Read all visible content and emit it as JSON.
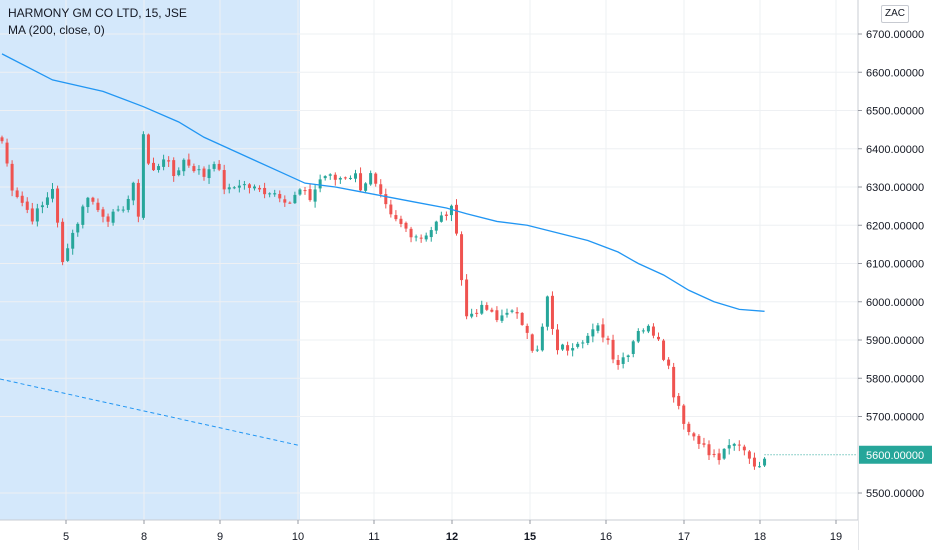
{
  "chart_data": {
    "type": "candlestick",
    "symbol_line": "HARMONY GM CO LTD, 15, JSE",
    "indicator_line": "MA (200, close, 0)",
    "currency": "ZAC",
    "last_price_label": "5600.00000",
    "last_price": 5600,
    "ylim": [
      5440,
      6760
    ],
    "y_ticks": [
      {
        "value": 6700,
        "label": "6700.00000"
      },
      {
        "value": 6600,
        "label": "6600.00000"
      },
      {
        "value": 6500,
        "label": "6500.00000"
      },
      {
        "value": 6400,
        "label": "6400.00000"
      },
      {
        "value": 6300,
        "label": "6300.00000"
      },
      {
        "value": 6200,
        "label": "6200.00000"
      },
      {
        "value": 6100,
        "label": "6100.00000"
      },
      {
        "value": 6000,
        "label": "6000.00000"
      },
      {
        "value": 5900,
        "label": "5900.00000"
      },
      {
        "value": 5800,
        "label": "5800.00000"
      },
      {
        "value": 5700,
        "label": "5700.00000"
      },
      {
        "value": 5500,
        "label": "5500.00000"
      }
    ],
    "x_ticks": [
      "5",
      "8",
      "9",
      "10",
      "11",
      "12",
      "15",
      "16",
      "17",
      "18",
      "19"
    ],
    "bold_x_ticks": [
      "12",
      "15"
    ],
    "price_path": [
      [
        0,
        6420
      ],
      [
        2,
        6300
      ],
      [
        4,
        6260
      ],
      [
        6,
        6220
      ],
      [
        8,
        6250
      ],
      [
        10,
        6300
      ],
      [
        11,
        6200
      ],
      [
        12,
        6100
      ],
      [
        13,
        6150
      ],
      [
        15,
        6210
      ],
      [
        17,
        6280
      ],
      [
        19,
        6240
      ],
      [
        21,
        6220
      ],
      [
        23,
        6230
      ],
      [
        25,
        6270
      ],
      [
        26,
        6300
      ],
      [
        27,
        6230
      ],
      [
        28,
        6440
      ],
      [
        29,
        6360
      ],
      [
        30,
        6340
      ],
      [
        32,
        6380
      ],
      [
        34,
        6330
      ],
      [
        36,
        6370
      ],
      [
        38,
        6350
      ],
      [
        40,
        6330
      ],
      [
        42,
        6370
      ],
      [
        44,
        6300
      ],
      [
        45,
        6290
      ],
      [
        47,
        6310
      ],
      [
        49,
        6300
      ],
      [
        51,
        6290
      ],
      [
        53,
        6290
      ],
      [
        55,
        6280
      ],
      [
        57,
        6260
      ],
      [
        59,
        6290
      ],
      [
        61,
        6270
      ],
      [
        63,
        6320
      ],
      [
        64,
        6330
      ],
      [
        66,
        6320
      ],
      [
        68,
        6330
      ],
      [
        70,
        6330
      ],
      [
        71,
        6300
      ],
      [
        73,
        6330
      ],
      [
        75,
        6270
      ],
      [
        77,
        6220
      ],
      [
        79,
        6200
      ],
      [
        81,
        6180
      ],
      [
        83,
        6170
      ],
      [
        85,
        6190
      ],
      [
        87,
        6220
      ],
      [
        89,
        6240
      ],
      [
        90,
        6190
      ],
      [
        91,
        6060
      ],
      [
        92,
        5960
      ],
      [
        94,
        5980
      ],
      [
        96,
        5980
      ],
      [
        98,
        5950
      ],
      [
        100,
        5980
      ],
      [
        102,
        5960
      ],
      [
        104,
        5930
      ],
      [
        105,
        5880
      ],
      [
        106,
        5870
      ],
      [
        107,
        5930
      ],
      [
        108,
        6010
      ],
      [
        109,
        5920
      ],
      [
        110,
        5880
      ],
      [
        112,
        5880
      ],
      [
        114,
        5900
      ],
      [
        116,
        5910
      ],
      [
        118,
        5930
      ],
      [
        120,
        5900
      ],
      [
        121,
        5860
      ],
      [
        122,
        5840
      ],
      [
        124,
        5870
      ],
      [
        126,
        5930
      ],
      [
        128,
        5930
      ],
      [
        130,
        5910
      ],
      [
        131,
        5860
      ],
      [
        132,
        5830
      ],
      [
        133,
        5760
      ],
      [
        134,
        5730
      ],
      [
        135,
        5690
      ],
      [
        136,
        5660
      ],
      [
        138,
        5640
      ],
      [
        140,
        5600
      ],
      [
        142,
        5590
      ],
      [
        144,
        5620
      ],
      [
        146,
        5630
      ],
      [
        148,
        5600
      ],
      [
        149,
        5560
      ],
      [
        150,
        5580
      ],
      [
        151,
        5600
      ]
    ],
    "ma200": [
      [
        0,
        6648
      ],
      [
        10,
        6580
      ],
      [
        20,
        6550
      ],
      [
        28,
        6510
      ],
      [
        35,
        6470
      ],
      [
        40,
        6430
      ],
      [
        45,
        6400
      ],
      [
        50,
        6370
      ],
      [
        55,
        6340
      ],
      [
        60,
        6310
      ],
      [
        66,
        6300
      ],
      [
        70,
        6290
      ],
      [
        76,
        6275
      ],
      [
        82,
        6260
      ],
      [
        88,
        6245
      ],
      [
        92,
        6230
      ],
      [
        98,
        6210
      ],
      [
        104,
        6200
      ],
      [
        110,
        6180
      ],
      [
        116,
        6160
      ],
      [
        122,
        6130
      ],
      [
        126,
        6100
      ],
      [
        131,
        6070
      ],
      [
        136,
        6030
      ],
      [
        141,
        6000
      ],
      [
        146,
        5980
      ],
      [
        151,
        5975
      ]
    ],
    "dashed_line": {
      "start": [
        0,
        5798
      ],
      "end": [
        59,
        5624
      ]
    },
    "highlight_range": [
      0,
      59
    ]
  }
}
